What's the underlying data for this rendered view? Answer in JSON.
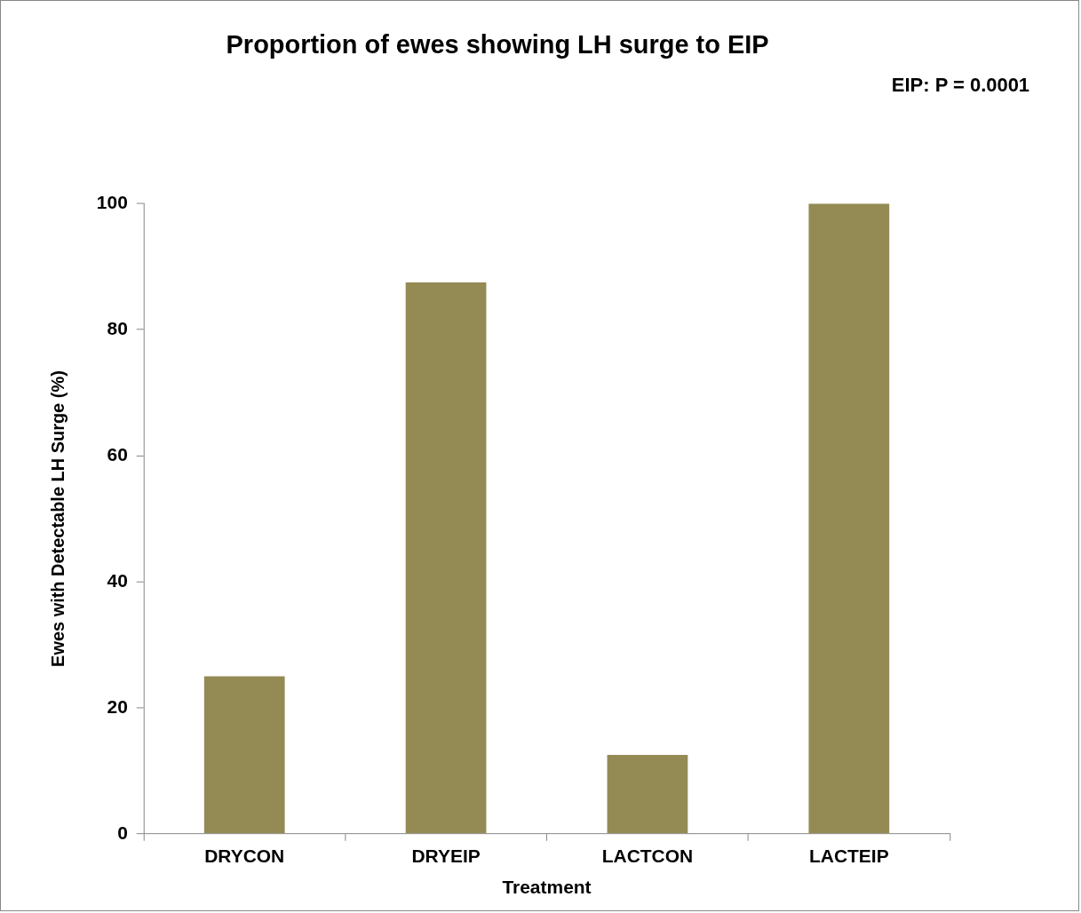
{
  "chart_data": {
    "type": "bar",
    "title": "Proportion of ewes showing LH surge to EIP",
    "xlabel": "Treatment",
    "ylabel": "Ewes with Detectable LH Surge (%)",
    "annotations": [
      "EIP: P = 0.0001"
    ],
    "categories": [
      "DRYCON",
      "DRYEIP",
      "LACTCON",
      "LACTEIP"
    ],
    "values": [
      25,
      87.5,
      12.5,
      100
    ],
    "color": "#948a54",
    "ylim": [
      0,
      100
    ],
    "yticks": [
      0,
      20,
      40,
      60,
      80,
      100
    ],
    "grid": false,
    "legend": false
  }
}
